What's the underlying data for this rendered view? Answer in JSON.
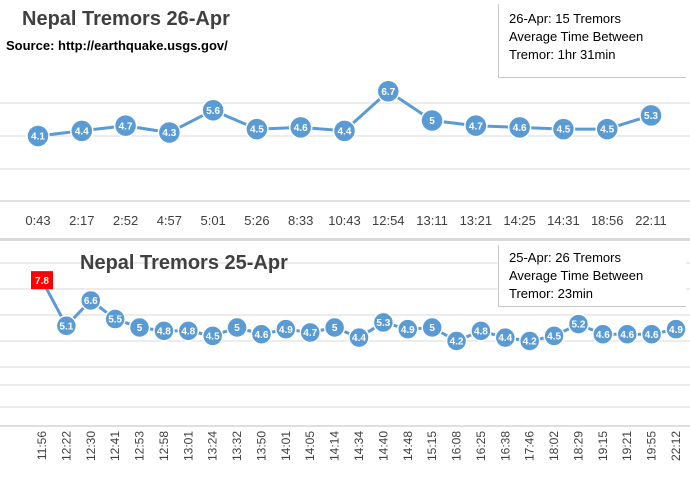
{
  "charts": {
    "top": {
      "title": "Nepal Tremors 26-Apr",
      "source": "Source:  http://earthquake.usgs.gov/",
      "info": [
        "26-Apr:  15 Tremors",
        "Average Time Between",
        "Tremor: 1hr 31min"
      ]
    },
    "bottom": {
      "title": "Nepal Tremors 25-Apr",
      "info": [
        "25-Apr:  26 Tremors",
        "Average Time Between",
        "Tremor: 23min"
      ]
    }
  },
  "colors": {
    "line": "#5b9bd5",
    "marker": "#5b9bd5",
    "highlight": "#ff0000",
    "grid": "#d9d9d9"
  },
  "chart_data": [
    {
      "type": "line",
      "title": "Nepal Tremors 26-Apr",
      "categories": [
        "0:43",
        "2:17",
        "2:52",
        "4:57",
        "5:01",
        "5:26",
        "8:33",
        "10:43",
        "12:54",
        "13:11",
        "13:21",
        "14:25",
        "14:31",
        "18:56",
        "22:11"
      ],
      "values": [
        4.1,
        4.4,
        4.7,
        4.3,
        5.6,
        4.5,
        4.6,
        4.4,
        6.7,
        5,
        4.7,
        4.6,
        4.5,
        4.5,
        5.3
      ],
      "grid": true,
      "data_labels": true
    },
    {
      "type": "line",
      "title": "Nepal Tremors 25-Apr",
      "categories": [
        "11:56",
        "12:22",
        "12:30",
        "12:41",
        "12:53",
        "12:58",
        "13:01",
        "13:24",
        "13:32",
        "13:50",
        "14:01",
        "14:05",
        "14:14",
        "14:34",
        "14:40",
        "14:48",
        "15:15",
        "16:08",
        "16:25",
        "16:38",
        "17:46",
        "18:02",
        "18:29",
        "19:15",
        "19:21",
        "19:55",
        "22:12"
      ],
      "values": [
        7.8,
        5.1,
        6.6,
        5.5,
        5,
        4.8,
        4.8,
        4.5,
        5,
        4.6,
        4.9,
        4.7,
        5,
        4.4,
        5.3,
        4.9,
        5,
        4.2,
        4.8,
        4.4,
        4.2,
        4.5,
        5.2,
        4.6,
        4.6,
        4.6,
        4.9
      ],
      "highlight_index": 0,
      "grid": true,
      "data_labels": true
    }
  ]
}
